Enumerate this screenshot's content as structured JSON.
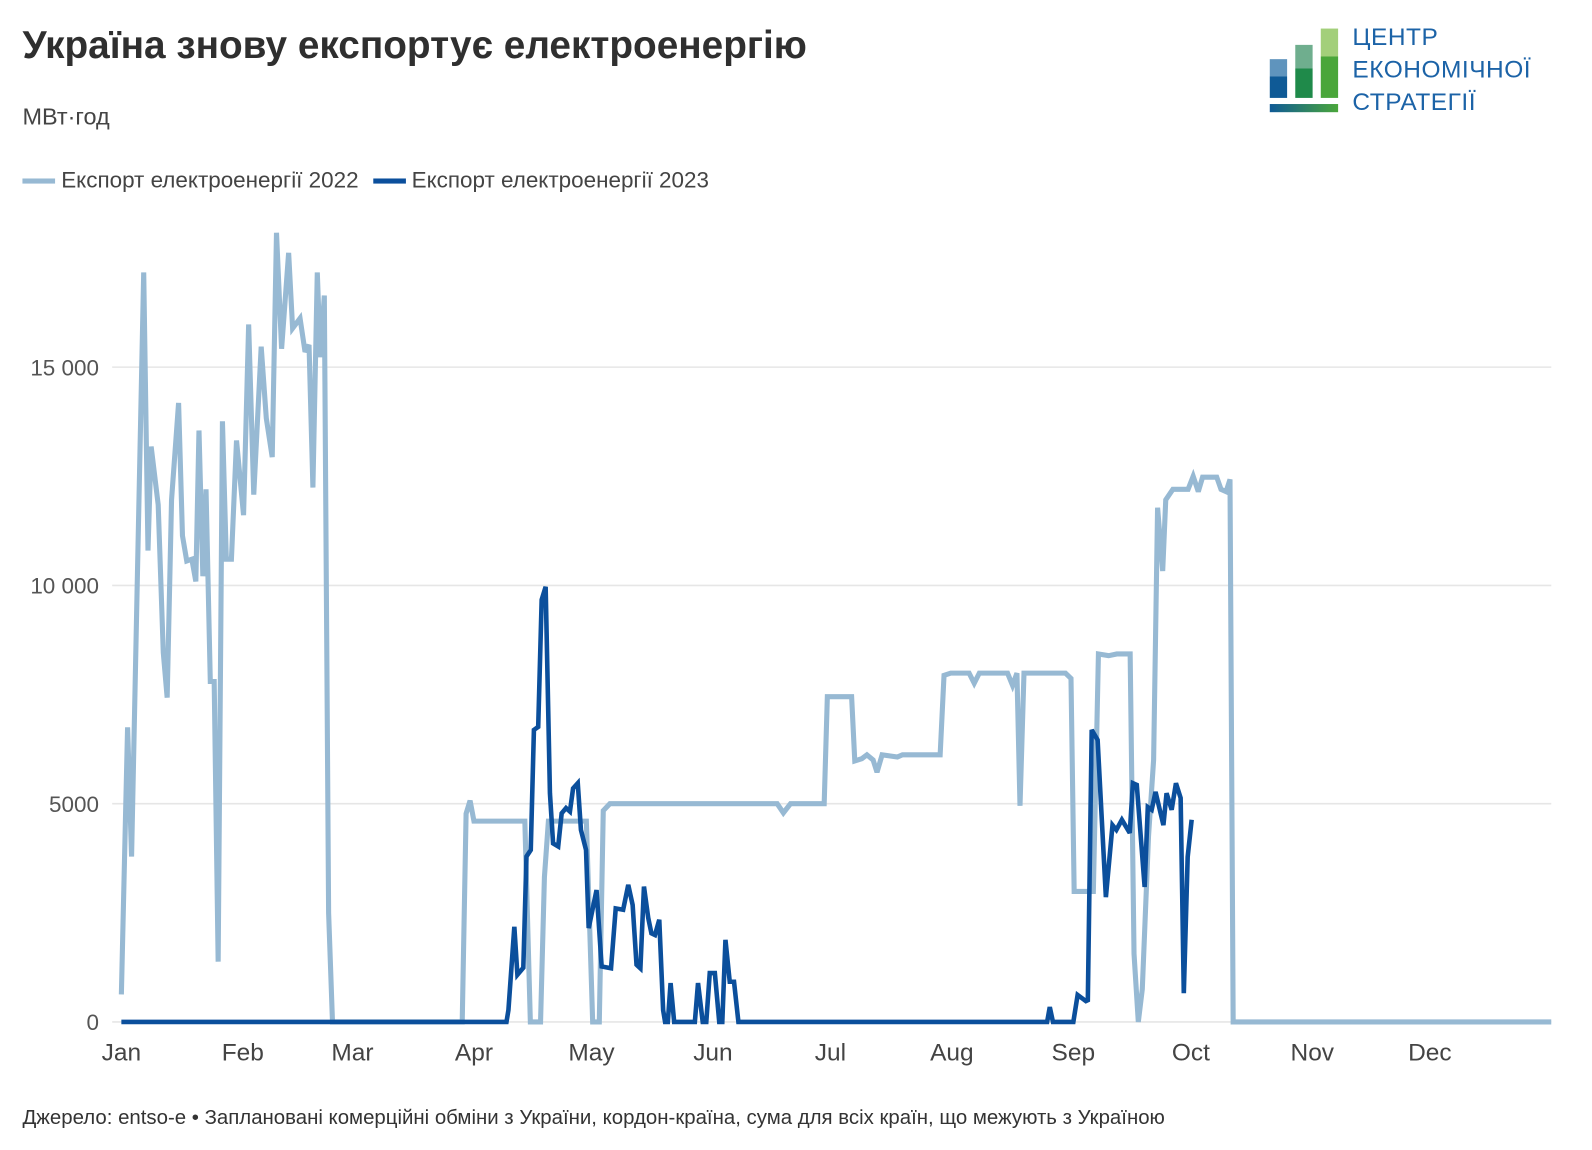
{
  "header": {
    "title": "Україна знову експортує електроенергію",
    "subtitle": "МВт·год"
  },
  "logo": {
    "lines": [
      "ЦЕНТР",
      "ЕКОНОМІЧНОЇ",
      "СТРАТЕГІЇ"
    ]
  },
  "footer": {
    "source": "Джерело: entso-e • Заплановані комерційні обміни з України, кордон-країна, сума для всіх країн, що межують з Україною"
  },
  "chart_data": {
    "type": "line",
    "title": "Україна знову експортує електроенергію",
    "ylabel": "МВт·год",
    "xlabel": "",
    "x_unit": "day of year",
    "xlim": [
      0,
      365
    ],
    "ylim": [
      0,
      18000
    ],
    "grid": true,
    "legend_position": "top-left",
    "x_ticks": [
      {
        "day": 0,
        "label": "Jan"
      },
      {
        "day": 31,
        "label": "Feb"
      },
      {
        "day": 59,
        "label": "Mar"
      },
      {
        "day": 90,
        "label": "Apr"
      },
      {
        "day": 120,
        "label": "May"
      },
      {
        "day": 151,
        "label": "Jun"
      },
      {
        "day": 181,
        "label": "Jul"
      },
      {
        "day": 212,
        "label": "Aug"
      },
      {
        "day": 243,
        "label": "Sep"
      },
      {
        "day": 273,
        "label": "Oct"
      },
      {
        "day": 304,
        "label": "Nov"
      },
      {
        "day": 334,
        "label": "Dec"
      }
    ],
    "y_ticks": [
      {
        "value": 0,
        "label": "0"
      },
      {
        "value": 5000,
        "label": "5000"
      },
      {
        "value": 10000,
        "label": "10 000"
      },
      {
        "value": 15000,
        "label": "15 000"
      }
    ],
    "series": [
      {
        "name": "Експорт електроенергії 2022",
        "color": "#97b9d3",
        "points": [
          [
            0,
            630
          ],
          [
            1.6,
            6750
          ],
          [
            2.6,
            3790
          ],
          [
            5.7,
            17170
          ],
          [
            6.8,
            10800
          ],
          [
            7.6,
            13180
          ],
          [
            9.4,
            11850
          ],
          [
            10.7,
            8460
          ],
          [
            11.7,
            7430
          ],
          [
            12.8,
            11960
          ],
          [
            14.6,
            14180
          ],
          [
            15.6,
            11140
          ],
          [
            16.7,
            10560
          ],
          [
            18,
            10600
          ],
          [
            19,
            10090
          ],
          [
            19.8,
            13550
          ],
          [
            20.8,
            10210
          ],
          [
            21.6,
            12200
          ],
          [
            22.7,
            7800
          ],
          [
            23.7,
            7800
          ],
          [
            24.7,
            1380
          ],
          [
            25.8,
            13760
          ],
          [
            26.8,
            10600
          ],
          [
            28.1,
            10600
          ],
          [
            29.4,
            13320
          ],
          [
            31.2,
            11610
          ],
          [
            32.5,
            15980
          ],
          [
            33.8,
            12080
          ],
          [
            35.7,
            15470
          ],
          [
            37,
            13830
          ],
          [
            38.5,
            12940
          ],
          [
            39.6,
            18080
          ],
          [
            40.9,
            15420
          ],
          [
            42.7,
            17620
          ],
          [
            43.7,
            15890
          ],
          [
            45.6,
            16120
          ],
          [
            46.9,
            15350
          ],
          [
            47.9,
            15510
          ],
          [
            48.9,
            12240
          ],
          [
            50,
            17170
          ],
          [
            50.8,
            15230
          ],
          [
            51.8,
            16640
          ],
          [
            52.9,
            2500
          ],
          [
            53.9,
            0
          ],
          [
            87,
            0
          ],
          [
            88,
            4770
          ],
          [
            89,
            5070
          ],
          [
            90,
            4600
          ],
          [
            103,
            4600
          ],
          [
            104.4,
            0
          ],
          [
            107,
            0
          ],
          [
            108,
            3320
          ],
          [
            109,
            4600
          ],
          [
            118.7,
            4600
          ],
          [
            120.3,
            0
          ],
          [
            122,
            0
          ],
          [
            123,
            4840
          ],
          [
            124.7,
            5000
          ],
          [
            167.4,
            5000
          ],
          [
            169,
            4790
          ],
          [
            170.8,
            5000
          ],
          [
            179.4,
            5000
          ],
          [
            180.2,
            7450
          ],
          [
            186.4,
            7450
          ],
          [
            187.2,
            5980
          ],
          [
            189,
            6030
          ],
          [
            190.3,
            6120
          ],
          [
            191.9,
            6000
          ],
          [
            192.9,
            5720
          ],
          [
            194.2,
            6120
          ],
          [
            198.1,
            6070
          ],
          [
            199.4,
            6120
          ],
          [
            209,
            6120
          ],
          [
            210,
            7940
          ],
          [
            211.7,
            7990
          ],
          [
            216.4,
            7990
          ],
          [
            217.7,
            7760
          ],
          [
            219,
            7990
          ],
          [
            226.2,
            7990
          ],
          [
            227.5,
            7710
          ],
          [
            228.6,
            7990
          ],
          [
            229.4,
            4950
          ],
          [
            230.4,
            7990
          ],
          [
            241,
            7990
          ],
          [
            242.4,
            7870
          ],
          [
            243.2,
            2990
          ],
          [
            248.1,
            2990
          ],
          [
            249.4,
            8430
          ],
          [
            252,
            8390
          ],
          [
            254.1,
            8430
          ],
          [
            257.5,
            8430
          ],
          [
            258.5,
            1560
          ],
          [
            259.6,
            0
          ],
          [
            260.6,
            750
          ],
          [
            262.2,
            4250
          ],
          [
            263.5,
            6000
          ],
          [
            264.5,
            11780
          ],
          [
            265.8,
            10330
          ],
          [
            266.6,
            11960
          ],
          [
            268.4,
            12200
          ],
          [
            272.3,
            12200
          ],
          [
            273.6,
            12500
          ],
          [
            274.9,
            12150
          ],
          [
            276,
            12480
          ],
          [
            279.6,
            12480
          ],
          [
            280.7,
            12200
          ],
          [
            282,
            12150
          ],
          [
            283,
            12430
          ],
          [
            283.8,
            0
          ],
          [
            365,
            0
          ]
        ]
      },
      {
        "name": "Експорт електроенергії 2023",
        "color": "#0b4f9c",
        "points": [
          [
            0,
            0
          ],
          [
            98.3,
            0
          ],
          [
            98.8,
            270
          ],
          [
            100.3,
            2180
          ],
          [
            101.1,
            1080
          ],
          [
            102.6,
            1240
          ],
          [
            103.4,
            3790
          ],
          [
            104.5,
            3940
          ],
          [
            105.3,
            6690
          ],
          [
            106.4,
            6760
          ],
          [
            107.3,
            9670
          ],
          [
            108.3,
            9970
          ],
          [
            109.4,
            5240
          ],
          [
            110.2,
            4090
          ],
          [
            111.5,
            4020
          ],
          [
            112.4,
            4780
          ],
          [
            113.5,
            4900
          ],
          [
            114.5,
            4820
          ],
          [
            115.3,
            5350
          ],
          [
            116.5,
            5470
          ],
          [
            117.3,
            4400
          ],
          [
            118.6,
            3940
          ],
          [
            119.3,
            2150
          ],
          [
            121.3,
            3020
          ],
          [
            122.6,
            1270
          ],
          [
            125,
            1230
          ],
          [
            126.2,
            2600
          ],
          [
            128.1,
            2570
          ],
          [
            129.4,
            3140
          ],
          [
            130.5,
            2680
          ],
          [
            131.5,
            1310
          ],
          [
            132.5,
            1230
          ],
          [
            133.4,
            3100
          ],
          [
            134.5,
            2380
          ],
          [
            135.3,
            2030
          ],
          [
            136.2,
            1990
          ],
          [
            137.3,
            2340
          ],
          [
            138.3,
            270
          ],
          [
            138.8,
            0
          ],
          [
            139.5,
            0
          ],
          [
            140.2,
            890
          ],
          [
            141.1,
            0
          ],
          [
            146.4,
            0
          ],
          [
            147.2,
            890
          ],
          [
            148.4,
            0
          ],
          [
            149.3,
            0
          ],
          [
            150.2,
            1120
          ],
          [
            151.5,
            1120
          ],
          [
            152.6,
            0
          ],
          [
            153.4,
            0
          ],
          [
            154.2,
            1880
          ],
          [
            155.3,
            920
          ],
          [
            156.4,
            920
          ],
          [
            157.5,
            0
          ],
          [
            236.3,
            0
          ],
          [
            237,
            340
          ],
          [
            237.8,
            0
          ],
          [
            243,
            0
          ],
          [
            244.1,
            620
          ],
          [
            246.2,
            480
          ],
          [
            246.7,
            500
          ],
          [
            247.7,
            6690
          ],
          [
            249.2,
            6460
          ],
          [
            251.3,
            2860
          ],
          [
            253,
            4510
          ],
          [
            254,
            4400
          ],
          [
            255.4,
            4630
          ],
          [
            257.4,
            4330
          ],
          [
            258.2,
            5470
          ],
          [
            259.2,
            5430
          ],
          [
            261.2,
            3090
          ],
          [
            262,
            4920
          ],
          [
            263,
            4860
          ],
          [
            264,
            5270
          ],
          [
            266,
            4510
          ],
          [
            266.8,
            5240
          ],
          [
            268.1,
            4860
          ],
          [
            269.2,
            5470
          ],
          [
            270.4,
            5130
          ],
          [
            271.2,
            660
          ],
          [
            272.2,
            3780
          ],
          [
            273.2,
            4630
          ]
        ]
      }
    ]
  }
}
